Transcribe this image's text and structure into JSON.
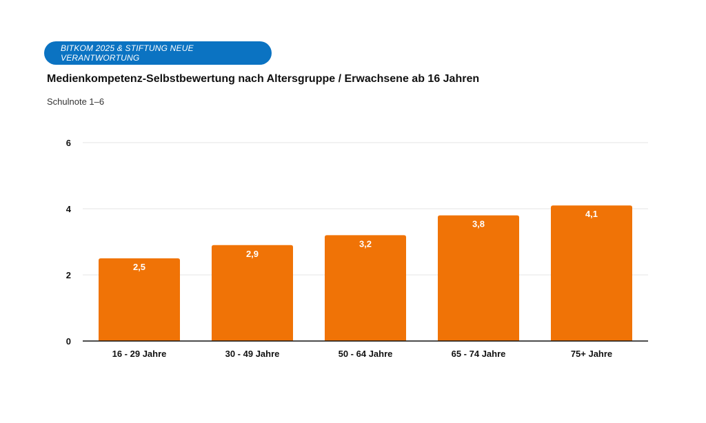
{
  "header": {
    "source": "BITKOM 2025 & STIFTUNG NEUE VERANTWORTUNG"
  },
  "chart_data": {
    "type": "bar",
    "title": "Medienkompetenz-Selbstbewertung nach Altersgruppe / Erwachsene ab 16 Jahren",
    "subtitle": "Schulnote 1–6",
    "categories": [
      "16 - 29 Jahre",
      "30 - 49 Jahre",
      "50 - 64 Jahre",
      "65 - 74 Jahre",
      "75+ Jahre"
    ],
    "values": [
      2.5,
      2.9,
      3.2,
      3.8,
      4.1
    ],
    "value_labels": [
      "2,5",
      "2,9",
      "3,2",
      "3,8",
      "4,1"
    ],
    "yticks": [
      0,
      2,
      4,
      6
    ],
    "ylim": [
      0,
      6
    ],
    "grid": true,
    "colors": {
      "bar": "#f07306",
      "grid": "#e6e6e6",
      "axis": "#111111"
    }
  }
}
